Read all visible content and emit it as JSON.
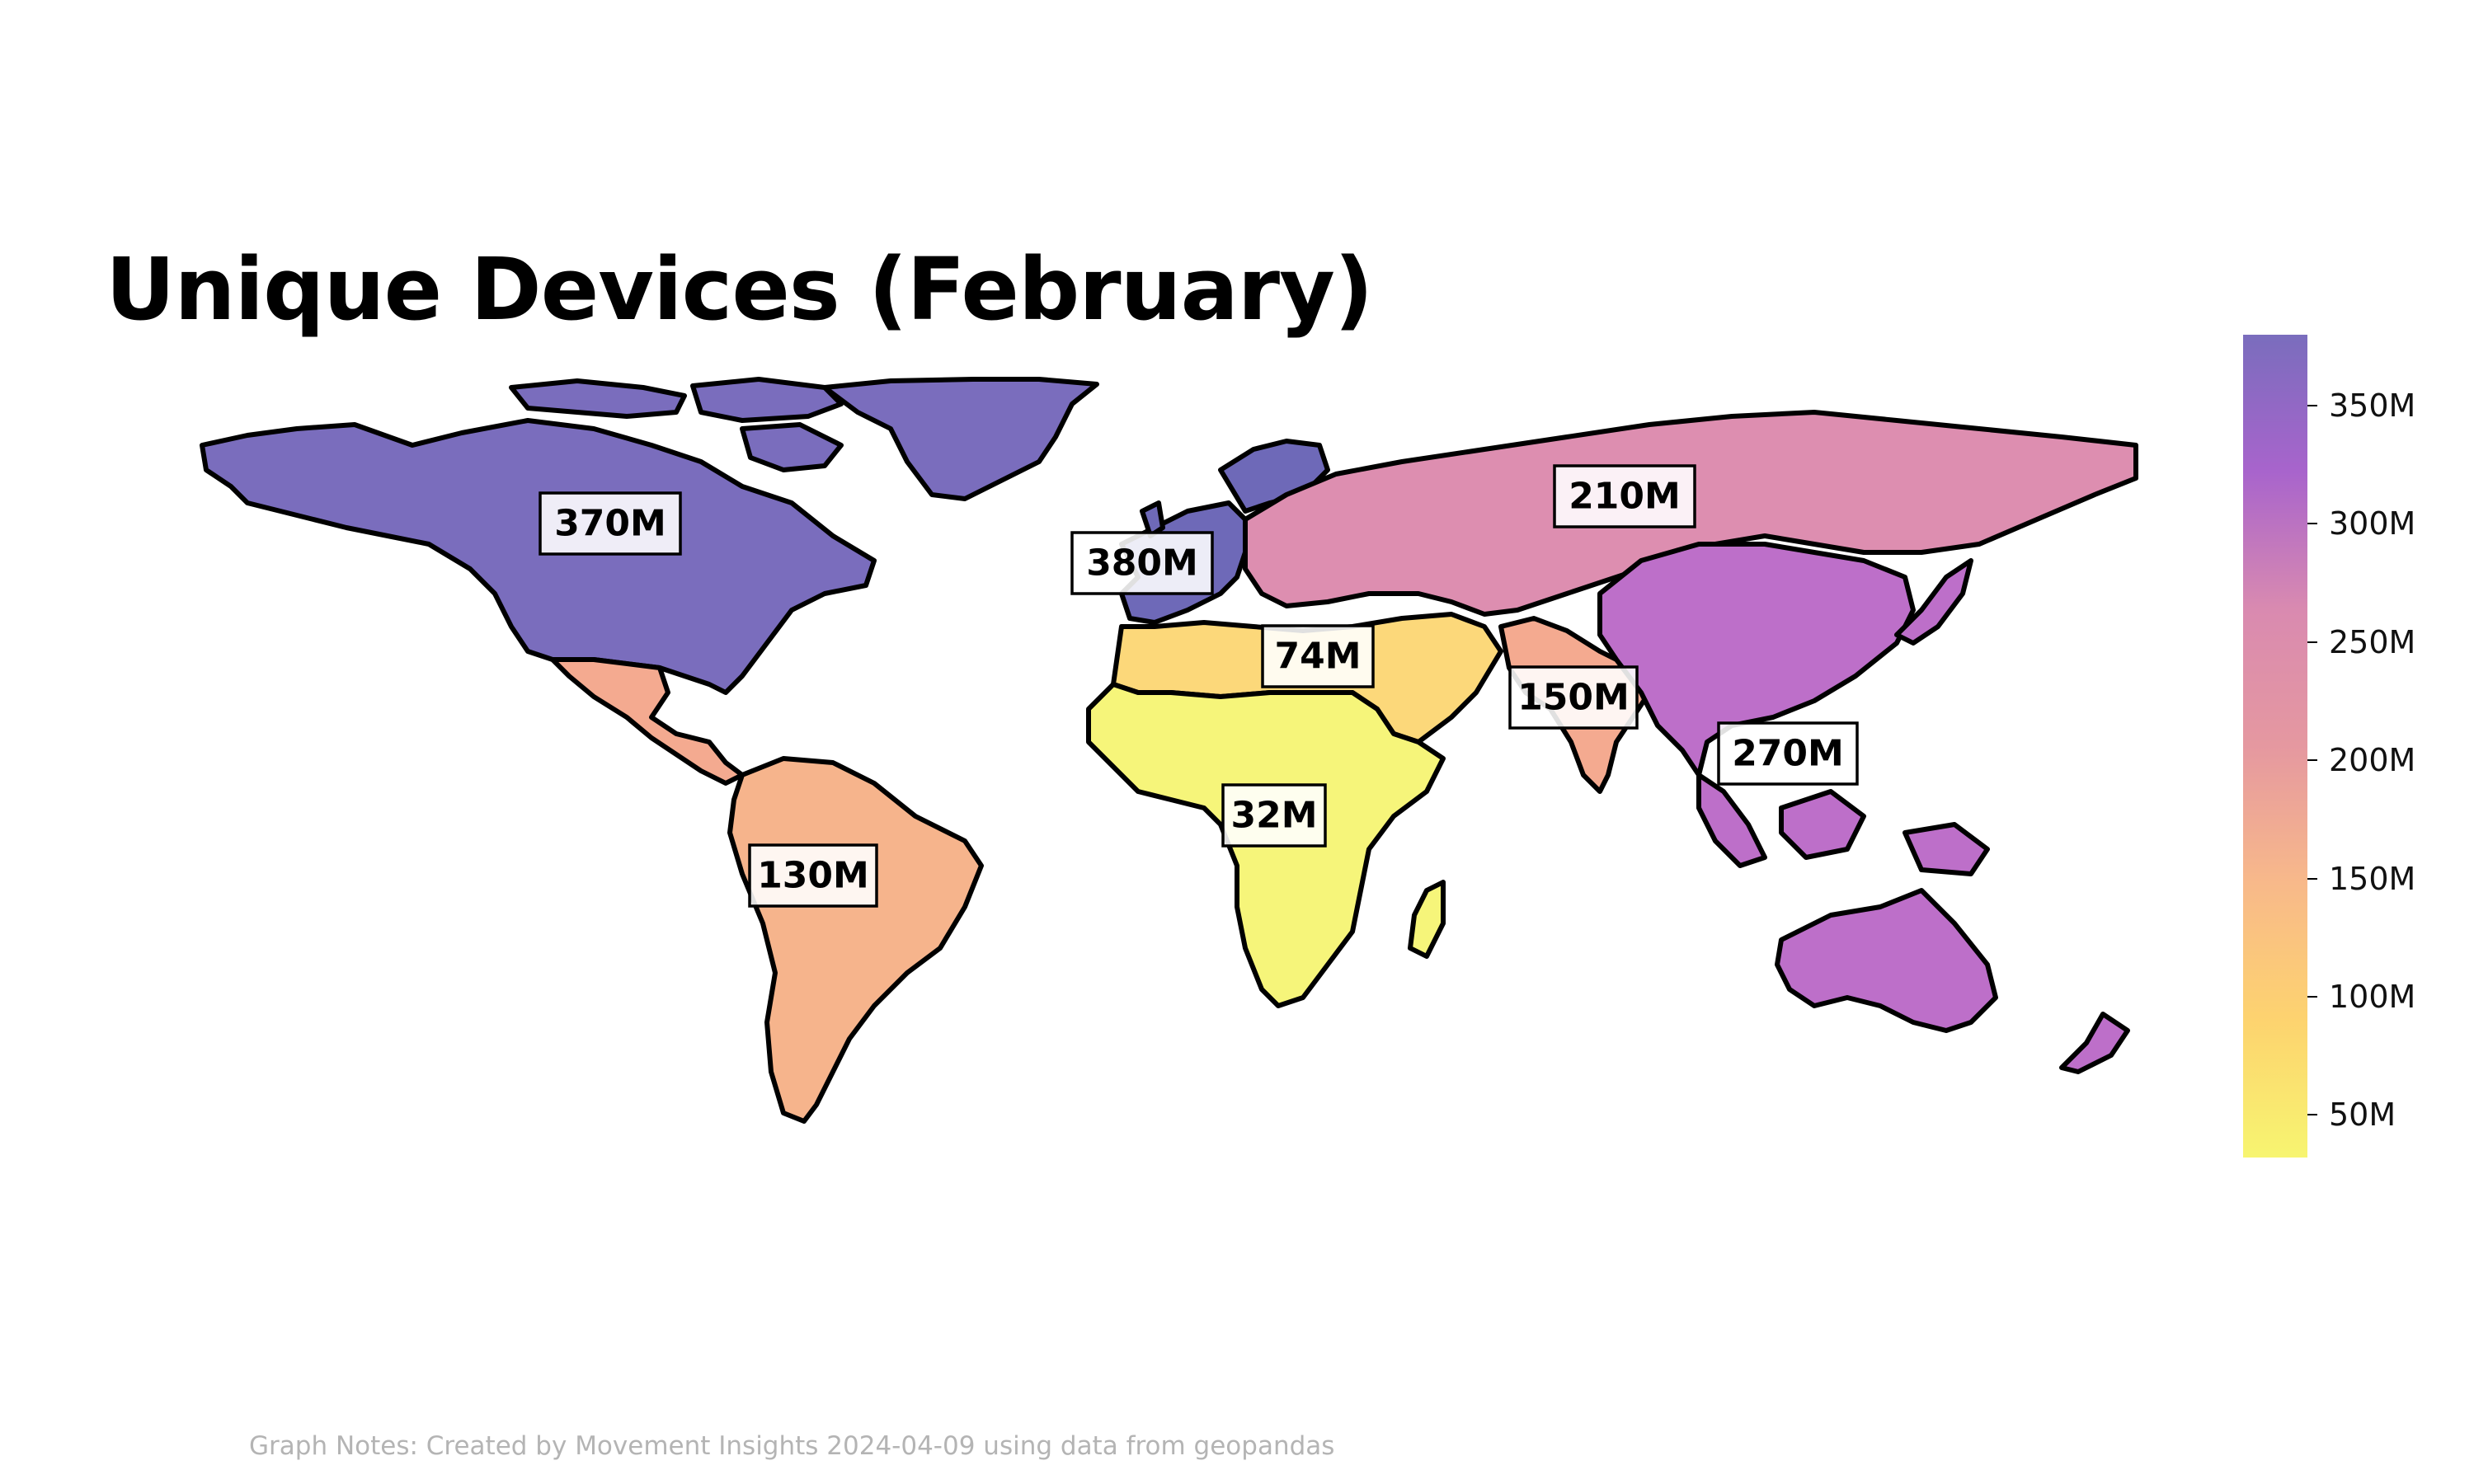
{
  "title": "Unique Devices (February)",
  "note": "Graph Notes: Created by Movement Insights 2024-04-09 using data from geopandas",
  "colorbar": {
    "min": 32,
    "max": 380,
    "colors": [
      "#f7f570",
      "#fdd36f",
      "#f8b98a",
      "#e598a0",
      "#d98ab0",
      "#a864cc",
      "#7a6dbd"
    ],
    "ticks": [
      {
        "value": 50,
        "label": "50M"
      },
      {
        "value": 100,
        "label": "100M"
      },
      {
        "value": 150,
        "label": "150M"
      },
      {
        "value": 200,
        "label": "200M"
      },
      {
        "value": 250,
        "label": "250M"
      },
      {
        "value": 300,
        "label": "300M"
      },
      {
        "value": 350,
        "label": "350M"
      }
    ]
  },
  "regions": [
    {
      "id": "north-america",
      "value": 370,
      "label": "370M",
      "color": "#7a6dbd"
    },
    {
      "id": "europe",
      "value": 380,
      "label": "380M",
      "color": "#6e69b8"
    },
    {
      "id": "russia-central-asia",
      "value": 210,
      "label": "210M",
      "color": "#dd8eb0"
    },
    {
      "id": "middle-east-north-africa",
      "value": 74,
      "label": "74M",
      "color": "#fcd87a"
    },
    {
      "id": "south-asia-mexico-central-america",
      "value": 150,
      "label": "150M",
      "color": "#f4aa90"
    },
    {
      "id": "east-asia-oceania",
      "value": 270,
      "label": "270M",
      "color": "#bd6fc9"
    },
    {
      "id": "sub-saharan-africa",
      "value": 32,
      "label": "32M",
      "color": "#f6f57a"
    },
    {
      "id": "south-america",
      "value": 130,
      "label": "130M",
      "color": "#f6b48c"
    }
  ]
}
